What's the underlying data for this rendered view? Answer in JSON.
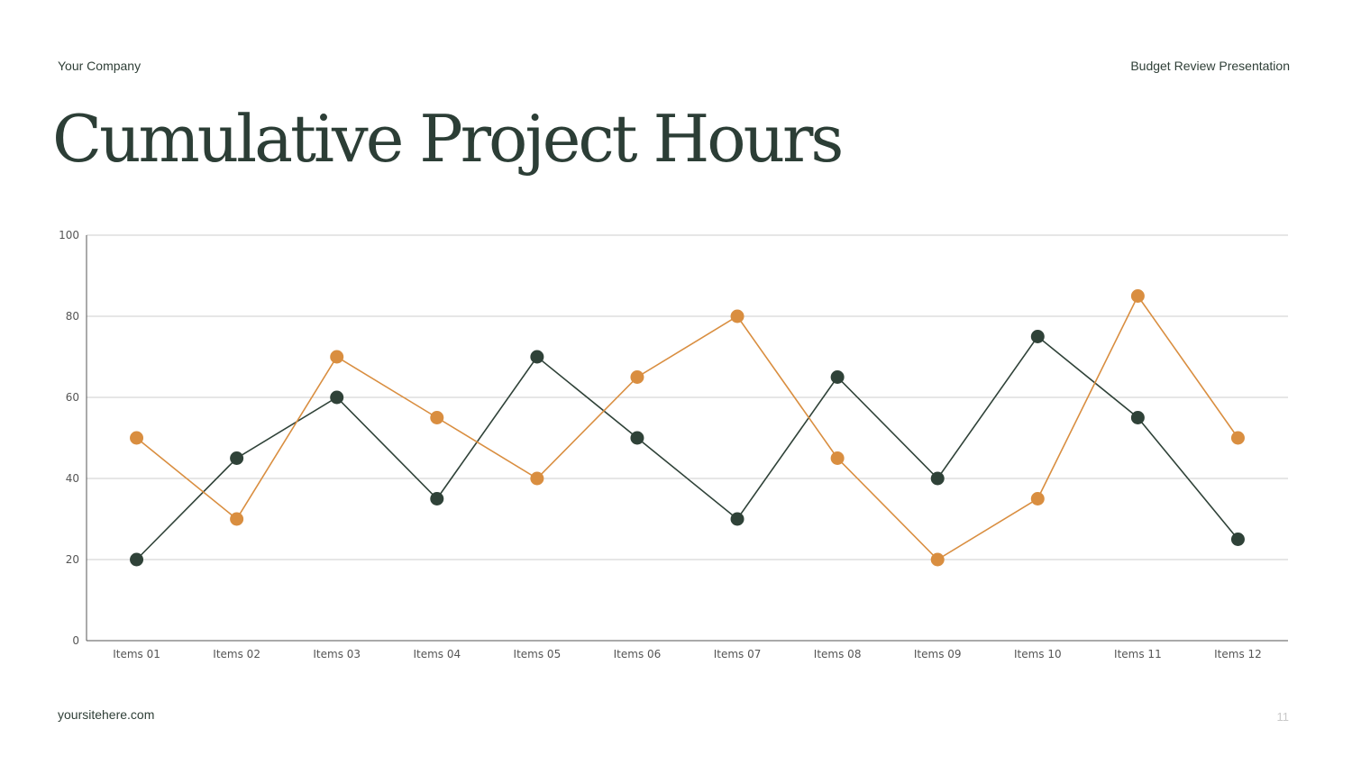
{
  "header": {
    "company": "Your Company",
    "deck_title": "Budget Review Presentation"
  },
  "slide": {
    "title": "Cumulative Project Hours"
  },
  "footer": {
    "site": "yoursitehere.com",
    "page_number": "11"
  },
  "colors": {
    "dark_series": "#2f4238",
    "orange_series": "#d98e40",
    "grid": "#cccccc",
    "axis": "#555555",
    "title": "#2c3e36"
  },
  "chart_data": {
    "type": "line",
    "categories": [
      "Items 01",
      "Items 02",
      "Items 03",
      "Items 04",
      "Items 05",
      "Items 06",
      "Items 07",
      "Items 08",
      "Items 09",
      "Items 10",
      "Items 11",
      "Items 12"
    ],
    "series": [
      {
        "color": "#2f4238",
        "values": [
          20,
          45,
          60,
          35,
          70,
          50,
          30,
          65,
          40,
          75,
          55,
          25
        ]
      },
      {
        "color": "#d98e40",
        "values": [
          50,
          30,
          70,
          55,
          40,
          65,
          80,
          45,
          20,
          35,
          85,
          50
        ]
      }
    ],
    "ylim": [
      0,
      100
    ],
    "yticks": [
      0,
      20,
      40,
      60,
      80,
      100
    ],
    "grid": true,
    "legend": "none",
    "title": "",
    "xlabel": "",
    "ylabel": ""
  }
}
